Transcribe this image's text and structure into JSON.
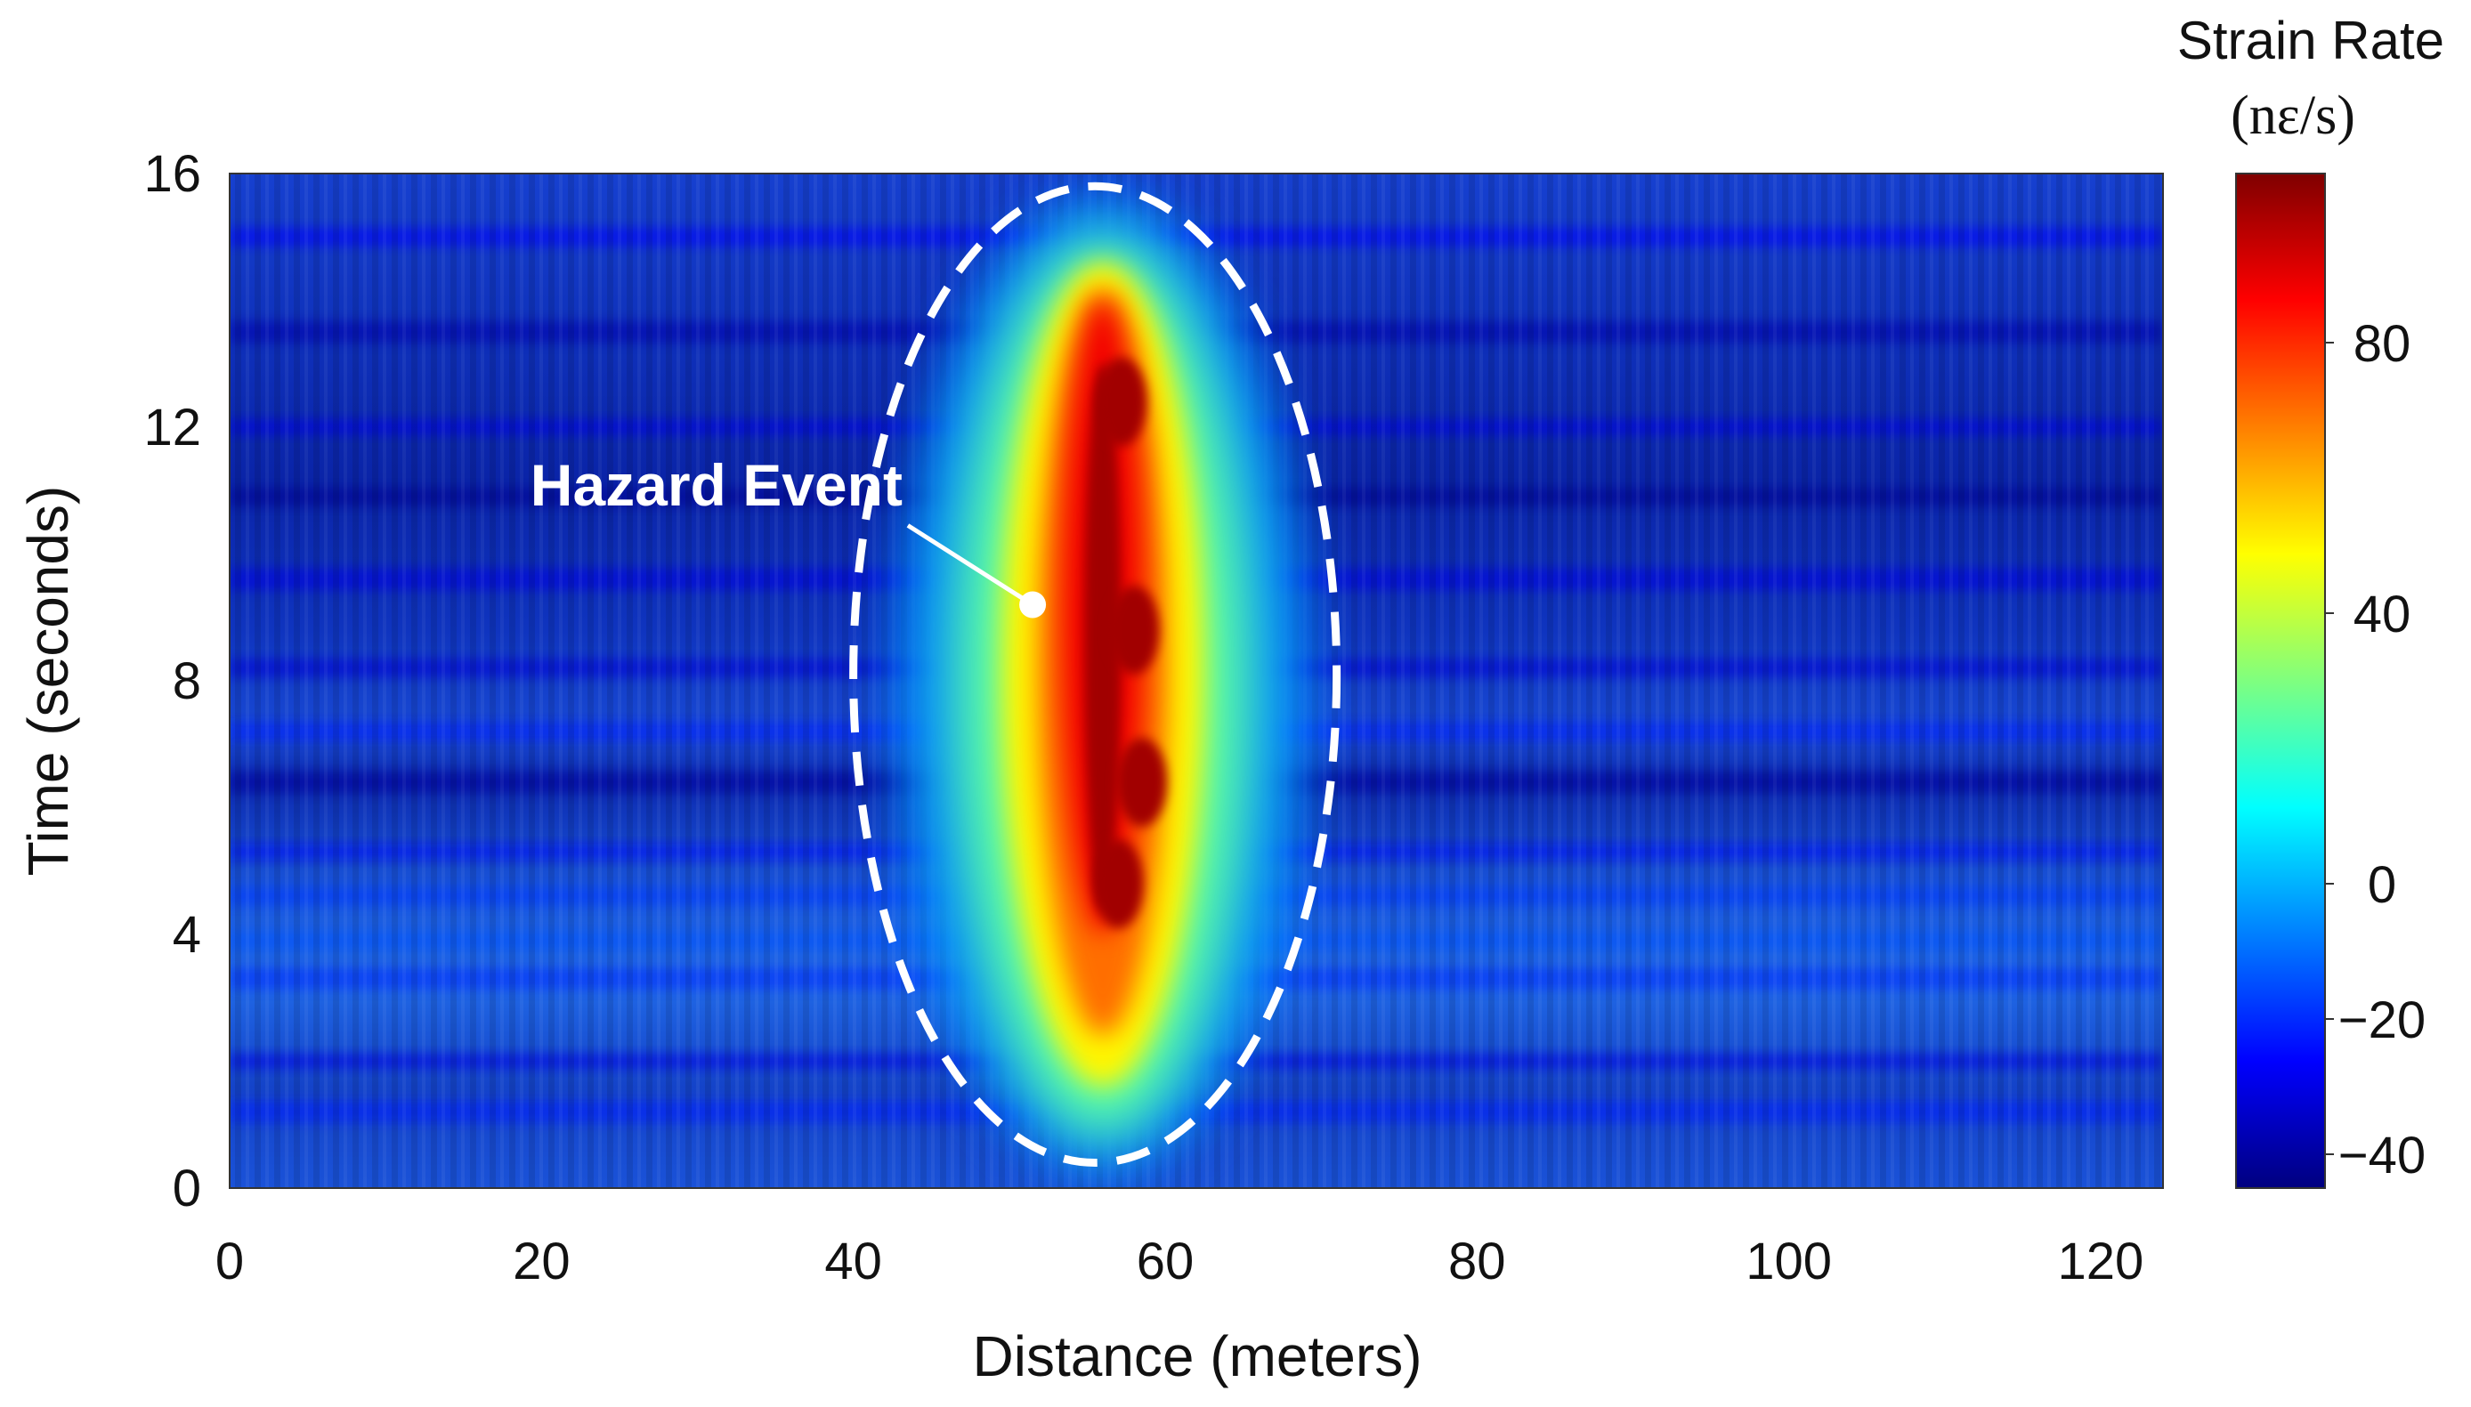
{
  "chart_data": {
    "type": "heatmap",
    "xlabel": "Distance (meters)",
    "ylabel": "Time  (seconds)",
    "xlim": [
      0,
      124
    ],
    "ylim": [
      0,
      16
    ],
    "x_ticks": [
      "0",
      "20",
      "40",
      "60",
      "80",
      "100",
      "120"
    ],
    "y_ticks": [
      "0",
      "4",
      "8",
      "12",
      "16"
    ],
    "colorbar": {
      "title": "Strain Rate",
      "unit": "(nε/s)",
      "range": [
        -45,
        105
      ],
      "ticks": [
        "80",
        "40",
        "0",
        "−20",
        "−40"
      ],
      "colormap": "jet",
      "colors": [
        "#00007f",
        "#0000ff",
        "#007fff",
        "#00ffff",
        "#7fff7f",
        "#ffff00",
        "#ff7f00",
        "#ff0000",
        "#7f0000"
      ]
    },
    "event_region": {
      "center_distance": 55.5,
      "center_time": 8.1,
      "half_width_distance": 15.5,
      "half_height_time": 7.7,
      "outline": "dashed-white-ellipse"
    },
    "event_peak": {
      "distance_range": [
        54,
        59
      ],
      "time_range": [
        4,
        14
      ],
      "max_strain_rate": 100
    },
    "background_strain_rate": -35,
    "annotation": {
      "text": "Hazard Event",
      "point_distance": 51.5,
      "point_time": 9.2
    }
  }
}
